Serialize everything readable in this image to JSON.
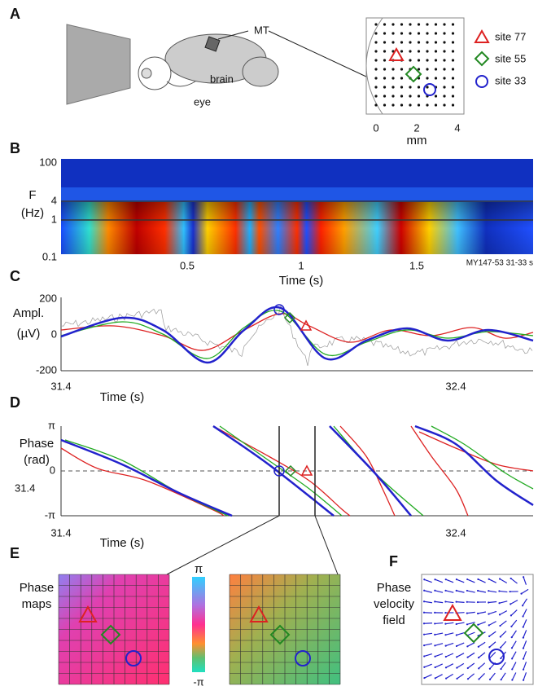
{
  "panels": {
    "A": {
      "label": "A",
      "eye": "eye",
      "brain": "brain",
      "area": "MT",
      "ticks": [
        "0",
        "2",
        "4"
      ],
      "axis_label": "mm",
      "legend": [
        "site 77",
        "site 55",
        "site 33"
      ]
    },
    "B": {
      "label": "B",
      "y_label": [
        "F",
        "(Hz)"
      ],
      "y_ticks": [
        "100",
        "4",
        "1",
        "0.1"
      ],
      "x_ticks": [
        "0.5",
        "1",
        "1.5"
      ],
      "x_label": "Time (s)",
      "note": "MY147-53 31-33 s"
    },
    "C": {
      "label": "C",
      "y_label": [
        "Ampl.",
        "(µV)"
      ],
      "y_ticks": [
        "200",
        "0",
        "-200"
      ],
      "x_ticks": [
        "31.4",
        "32.4"
      ],
      "x_label": "Time (s)"
    },
    "D": {
      "label": "D",
      "y_label": [
        "Phase",
        "(rad)"
      ],
      "y_ticks": [
        "π",
        "0",
        "-π"
      ],
      "side_tick": "31.4",
      "x_ticks": [
        "31.4",
        "32.4"
      ],
      "x_label": "Time (s)"
    },
    "E": {
      "label": "E",
      "title": [
        "Phase",
        "maps"
      ],
      "colorbar": [
        "π",
        "-π"
      ]
    },
    "F": {
      "label": "F",
      "title": [
        "Phase",
        "velocity",
        "field"
      ]
    }
  }
}
